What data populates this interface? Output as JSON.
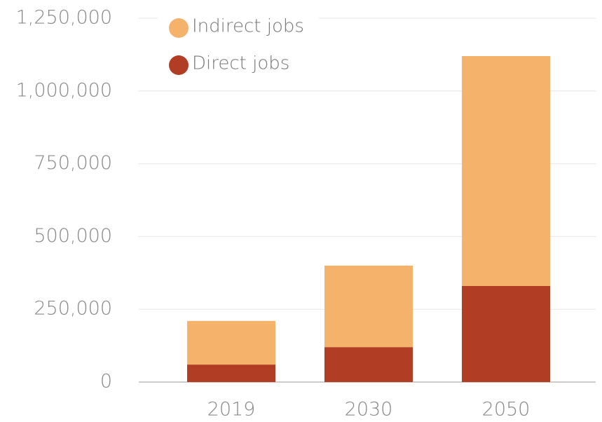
{
  "chart_data": {
    "type": "stacked_bar",
    "categories": [
      "2019",
      "2030",
      "2050"
    ],
    "series": [
      {
        "name": "Direct jobs",
        "color": "#b03d24",
        "values": [
          60000,
          120000,
          330000
        ]
      },
      {
        "name": "Indirect jobs",
        "color": "#f4b26b",
        "values": [
          150000,
          280000,
          790000
        ]
      }
    ],
    "ylim": [
      0,
      1250000
    ],
    "yticks": [
      0,
      {
        "value": 250000,
        "label": "250,000"
      },
      {
        "value": 500000,
        "label": "500,000"
      },
      {
        "value": 750000,
        "label": "750,000"
      },
      {
        "value": 1000000,
        "label": "1,000,000"
      },
      {
        "value": 1250000,
        "label": "1,250,000"
      }
    ],
    "grid": true,
    "legend": "top-left"
  }
}
